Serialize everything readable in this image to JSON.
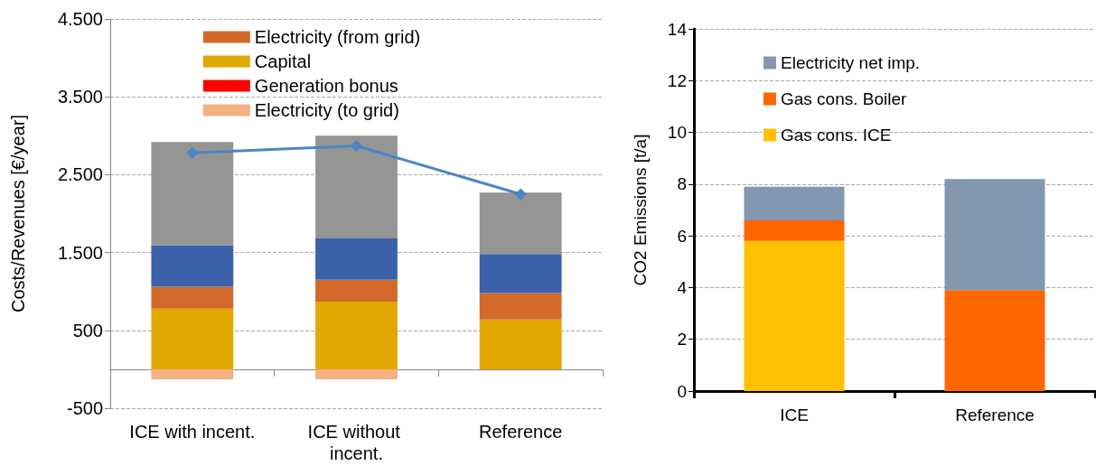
{
  "chart_data": [
    {
      "type": "bar",
      "stacked": true,
      "categories": [
        "ICE with incent.",
        "ICE without incent.",
        "Reference"
      ],
      "ylabel": "Costs/Revenues [€/year]",
      "ylim": [
        -500,
        4500
      ],
      "yticks": [
        {
          "value": -500,
          "label": "-500"
        },
        {
          "value": 500,
          "label": "500"
        },
        {
          "value": 1500,
          "label": "1.500"
        },
        {
          "value": 2500,
          "label": "2.500"
        },
        {
          "value": 3500,
          "label": "3.500"
        },
        {
          "value": 4500,
          "label": "4.500"
        }
      ],
      "grid": "y",
      "legend": "top",
      "series": [
        {
          "name": "Electricity (to grid)",
          "color": "#f4b183",
          "values": [
            -130,
            -130,
            0
          ]
        },
        {
          "name": "Generation bonus",
          "color": "#ff0000",
          "values": [
            0,
            0,
            0
          ]
        },
        {
          "name": "Capital",
          "color": "#e0a800",
          "values": [
            780,
            870,
            640
          ]
        },
        {
          "name": "Electricity (from grid)",
          "color": "#d2692a",
          "values": [
            280,
            280,
            340
          ]
        },
        {
          "color": "#3b62ab",
          "values": [
            530,
            530,
            500
          ]
        },
        {
          "color": "#959595",
          "values": [
            1330,
            1320,
            790
          ]
        },
        {
          "type": "line",
          "color": "#4a86c5",
          "marker": "diamond",
          "values": [
            2780,
            2870,
            2250
          ]
        }
      ]
    },
    {
      "type": "bar",
      "stacked": true,
      "categories": [
        "ICE",
        "Reference"
      ],
      "ylabel": "CO2 Emissions [t/a]",
      "ylim": [
        0,
        14
      ],
      "yticks": [
        0,
        2,
        4,
        6,
        8,
        10,
        12,
        14
      ],
      "grid": "y",
      "legend": "top left",
      "series": [
        {
          "name": "Gas cons. ICE",
          "color": "#ffc000",
          "values": [
            5.8,
            0
          ]
        },
        {
          "name": "Gas cons. Boiler",
          "color": "#ff6600",
          "values": [
            0.8,
            3.9
          ]
        },
        {
          "name": "Electricity net imp.",
          "color": "#8497b0",
          "values": [
            1.3,
            4.3
          ]
        }
      ]
    }
  ]
}
